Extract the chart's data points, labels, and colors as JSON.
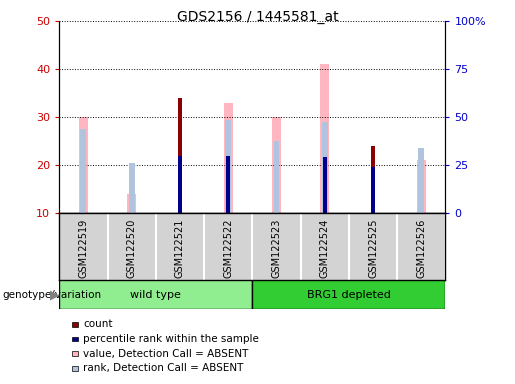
{
  "title": "GDS2156 / 1445581_at",
  "samples": [
    "GSM122519",
    "GSM122520",
    "GSM122521",
    "GSM122522",
    "GSM122523",
    "GSM122524",
    "GSM122525",
    "GSM122526"
  ],
  "count_values": [
    0,
    0,
    34,
    0,
    0,
    0,
    24,
    0
  ],
  "rank_values": [
    0,
    0,
    29.5,
    29.5,
    0,
    29,
    24,
    0
  ],
  "absent_value_values": [
    30,
    14,
    0,
    33,
    30,
    41,
    0,
    21
  ],
  "absent_rank_values": [
    27.5,
    20.5,
    0,
    29.5,
    25,
    29,
    0,
    23.5
  ],
  "left_ylim": [
    10,
    50
  ],
  "left_yticks": [
    10,
    20,
    30,
    40,
    50
  ],
  "right_ylim": [
    0,
    100
  ],
  "right_yticks": [
    0,
    25,
    50,
    75,
    100
  ],
  "right_yticklabels": [
    "0",
    "25",
    "50",
    "75",
    "100%"
  ],
  "color_count": "#8B0000",
  "color_rank": "#00008B",
  "color_absent_value": "#FFB6C1",
  "color_absent_rank": "#B0C4DE",
  "ylabel_left_color": "#CC0000",
  "ylabel_right_color": "#0000CC",
  "plot_bg": "#ffffff",
  "xtick_bg": "#D3D3D3",
  "group_wt_color": "#90EE90",
  "group_brg_color": "#32CD32"
}
